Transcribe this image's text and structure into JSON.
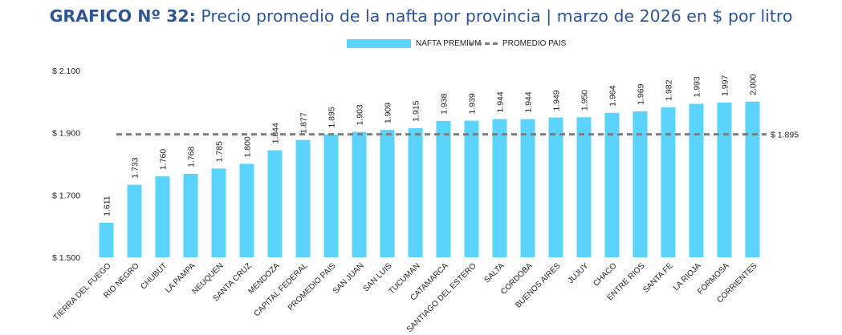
{
  "title": {
    "bold": "GRAFICO Nº 32:",
    "rest": " Precio promedio de la nafta por provincia | marzo de 2026 en $ por litro"
  },
  "legend": {
    "bar": "NAFTA PREMIUM",
    "line": "PROMEDIO PAIS"
  },
  "colors": {
    "bar": "#5bd3fb",
    "average_line": "#7f7f7f",
    "title": "#2f5597"
  },
  "chart_data": {
    "type": "bar",
    "categories": [
      "TIERRA DEL FUEGO",
      "RIO NEGRO",
      "CHUBUT",
      "LA PAMPA",
      "NEUQUEN",
      "SANTA CRUZ",
      "MENDOZA",
      "CAPITAL FEDERAL",
      "PROMEDIO PAIS",
      "SAN JUAN",
      "SAN LUIS",
      "TUCUMAN",
      "CATAMARCA",
      "SANTIAGO DEL ESTERO",
      "SALTA",
      "CORDOBA",
      "BUENOS AIRES",
      "JUJUY",
      "CHACO",
      "ENTRE RIOS",
      "SANTA FE",
      "LA RIOJA",
      "FORMOSA",
      "CORRIENTES"
    ],
    "series": [
      {
        "name": "NAFTA PREMIUM",
        "values": [
          1611,
          1733,
          1760,
          1768,
          1785,
          1800,
          1844,
          1877,
          1895,
          1903,
          1909,
          1915,
          1938,
          1939,
          1944,
          1944,
          1949,
          1950,
          1964,
          1969,
          1982,
          1993,
          1997,
          2000
        ],
        "labels": [
          "1.611",
          "1.733",
          "1.760",
          "1.768",
          "1.785",
          "1.800",
          "1.844",
          "1.877",
          "1.895",
          "1.903",
          "1.909",
          "1.915",
          "1.938",
          "1.939",
          "1.944",
          "1.944",
          "1.949",
          "1.950",
          "1.964",
          "1.969",
          "1.982",
          "1.993",
          "1.997",
          "2.000"
        ]
      },
      {
        "name": "PROMEDIO PAIS",
        "type": "line",
        "style": "dashed",
        "value": 1895,
        "label": "$ 1.895"
      }
    ],
    "ylim": [
      1500,
      2100
    ],
    "yticks": [
      1500,
      1700,
      1900,
      2100
    ],
    "ytick_labels": [
      "$ 1.500",
      "$ 1.700",
      "$ 1.900",
      "$ 2.100"
    ],
    "grid": false,
    "legend_position": "top-center"
  }
}
